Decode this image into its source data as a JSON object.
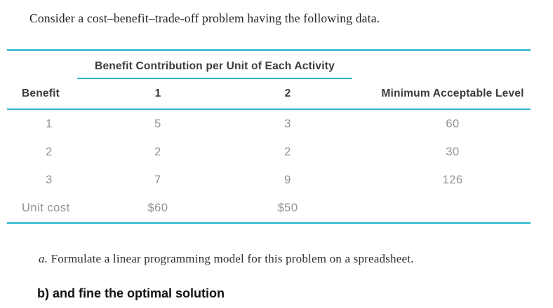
{
  "intro": "Consider a cost–benefit–trade-off problem having the following data.",
  "table": {
    "span_header": "Benefit Contribution per Unit of Each Activity",
    "columns": [
      "Benefit",
      "1",
      "2",
      "Minimum Acceptable Level"
    ],
    "rows": [
      [
        "1",
        "5",
        "3",
        "60"
      ],
      [
        "2",
        "2",
        "2",
        "30"
      ],
      [
        "3",
        "7",
        "9",
        "126"
      ],
      [
        "Unit cost",
        "$60",
        "$50",
        ""
      ]
    ]
  },
  "question_a": {
    "marker": "a.",
    "text": "Formulate a linear programming model for this problem on a spreadsheet."
  },
  "question_b": "b) and fine the optimal solution",
  "colors": {
    "accent_rule_thick": "#49c3d5",
    "accent_rule_thin": "#35b2cf",
    "header_text": "#3b3b3b",
    "body_text": "#8f9194"
  }
}
